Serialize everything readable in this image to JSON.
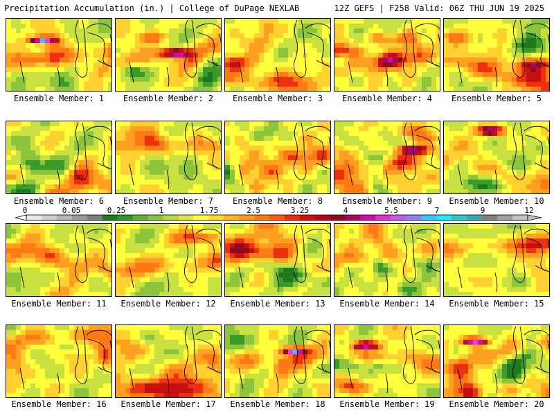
{
  "header": {
    "left": "Precipitation Accumulation (in.) | College of DuPage NEXLAB",
    "right": "12Z GEFS | F258 Valid: 06Z THU JUN 19 2025"
  },
  "legend": {
    "labels": [
      "0",
      "0.05",
      "0.25",
      "1",
      "1.75",
      "2.5",
      "3.25",
      "4",
      "5.5",
      "7",
      "9",
      "12"
    ],
    "colors": [
      "#e8e8e8",
      "#cfcfcf",
      "#b4b4b4",
      "#9a9a9a",
      "#7f7f7f",
      "#1f7a1f",
      "#2f962f",
      "#5fb03a",
      "#8cc43c",
      "#b8d640",
      "#e0e43c",
      "#ffff3c",
      "#ffd82e",
      "#ffb420",
      "#ff9818",
      "#ff7a14",
      "#ff5a10",
      "#ee2a10",
      "#d41010",
      "#b00c18",
      "#8c0a22",
      "#aa0a5a",
      "#d010a0",
      "#e030d0",
      "#c060e8",
      "#9080ff",
      "#40c0ff",
      "#20e8ff",
      "#30c8c8",
      "#40a8a8",
      "#808080",
      "#a0a0a0",
      "#c0c0c0"
    ]
  },
  "members": [
    {
      "label": "Ensemble Member: 1"
    },
    {
      "label": "Ensemble Member: 2"
    },
    {
      "label": "Ensemble Member: 3"
    },
    {
      "label": "Ensemble Member: 4"
    },
    {
      "label": "Ensemble Member: 5"
    },
    {
      "label": "Ensemble Member: 6"
    },
    {
      "label": "Ensemble Member: 7"
    },
    {
      "label": "Ensemble Member: 8"
    },
    {
      "label": "Ensemble Member: 9"
    },
    {
      "label": "Ensemble Member: 10"
    },
    {
      "label": "Ensemble Member: 11"
    },
    {
      "label": "Ensemble Member: 12"
    },
    {
      "label": "Ensemble Member: 13"
    },
    {
      "label": "Ensemble Member: 14"
    },
    {
      "label": "Ensemble Member: 15"
    },
    {
      "label": "Ensemble Member: 16"
    },
    {
      "label": "Ensemble Member: 17"
    },
    {
      "label": "Ensemble Member: 18"
    },
    {
      "label": "Ensemble Member: 19"
    },
    {
      "label": "Ensemble Member: 20"
    }
  ]
}
